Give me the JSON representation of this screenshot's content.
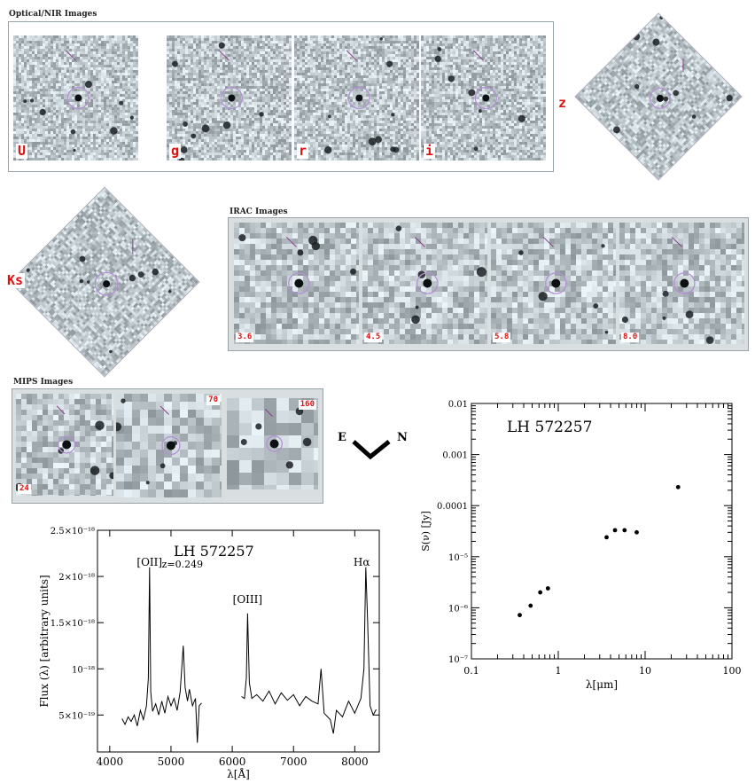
{
  "groups": {
    "optical": {
      "title": "Optical/NIR Images",
      "bands": [
        "U",
        "g",
        "r",
        "i",
        "z",
        "Ks"
      ]
    },
    "irac": {
      "title": "IRAC Images",
      "bands": [
        "3.6",
        "4.5",
        "5.8",
        "8.0"
      ]
    },
    "mips": {
      "title": "MIPS Images",
      "bands": [
        "24",
        "70",
        "160"
      ]
    }
  },
  "compass": {
    "east": "E",
    "north": "N"
  },
  "spectrum": {
    "object": "LH 572257",
    "redshift": "z=0.249",
    "lines": [
      "[OII]",
      "[OIII]",
      "Hα"
    ],
    "xlabel": "λ[Å]",
    "ylabel": "Flux (λ) [arbitrary units]"
  },
  "sed": {
    "object": "LH 572257",
    "xlabel": "λ[μm]",
    "ylabel": "S(ν) [Jy]"
  },
  "chart_data": [
    {
      "type": "line",
      "title": "LH 572257",
      "xlabel": "λ[Å]",
      "ylabel": "Flux (λ) [arbitrary units]",
      "xlim": [
        3800,
        8400
      ],
      "ylim": [
        1e-19,
        2.5e-18
      ],
      "xticks": [
        4000,
        5000,
        6000,
        7000,
        8000
      ],
      "yticks": [
        "5×10⁻¹⁹",
        "10⁻¹⁸",
        "1.5×10⁻¹⁸",
        "2×10⁻¹⁸",
        "2.5×10⁻¹⁸"
      ],
      "ytick_values": [
        5e-19,
        1e-18,
        1.5e-18,
        2e-18,
        2.5e-18
      ],
      "annotations": [
        {
          "text": "[OII]",
          "x": 4650
        },
        {
          "text": "[OIII]",
          "x": 6250
        },
        {
          "text": "Hα",
          "x": 8200
        }
      ],
      "series": [
        {
          "segments": [
            [
              [
                4200,
                4.6e-19
              ],
              [
                4250,
                4e-19
              ],
              [
                4300,
                4.8e-19
              ],
              [
                4350,
                4.3e-19
              ],
              [
                4400,
                5e-19
              ],
              [
                4450,
                3.8e-19
              ],
              [
                4500,
                5.5e-19
              ],
              [
                4550,
                4.5e-19
              ],
              [
                4600,
                6e-19
              ],
              [
                4630,
                9e-19
              ],
              [
                4650,
                2.1e-18
              ],
              [
                4670,
                7.5e-19
              ],
              [
                4700,
                5.4e-19
              ],
              [
                4750,
                6.2e-19
              ],
              [
                4800,
                5e-19
              ],
              [
                4850,
                6.5e-19
              ],
              [
                4900,
                5.2e-19
              ],
              [
                4950,
                7e-19
              ],
              [
                5000,
                6e-19
              ],
              [
                5050,
                6.8e-19
              ],
              [
                5100,
                5.5e-19
              ],
              [
                5150,
                7.5e-19
              ],
              [
                5200,
                1.25e-18
              ],
              [
                5230,
                8e-19
              ],
              [
                5270,
                6.5e-19
              ],
              [
                5300,
                7.8e-19
              ],
              [
                5350,
                6e-19
              ],
              [
                5400,
                6.8e-19
              ],
              [
                5430,
                2e-19
              ],
              [
                5460,
                6e-19
              ],
              [
                5500,
                6.3e-19
              ]
            ],
            [
              [
                6150,
                7e-19
              ],
              [
                6200,
                6.8e-19
              ],
              [
                6230,
                9e-19
              ],
              [
                6250,
                1.6e-18
              ],
              [
                6280,
                8.5e-19
              ],
              [
                6320,
                6.8e-19
              ],
              [
                6400,
                7.2e-19
              ],
              [
                6500,
                6.5e-19
              ],
              [
                6600,
                7.6e-19
              ],
              [
                6700,
                6.2e-19
              ],
              [
                6800,
                7.4e-19
              ],
              [
                6900,
                6.6e-19
              ],
              [
                7000,
                7.2e-19
              ],
              [
                7100,
                6e-19
              ],
              [
                7200,
                7e-19
              ],
              [
                7300,
                6.5e-19
              ],
              [
                7400,
                6.2e-19
              ],
              [
                7450,
                1e-18
              ],
              [
                7500,
                5.2e-19
              ],
              [
                7600,
                4.5e-19
              ],
              [
                7650,
                3e-19
              ],
              [
                7700,
                5.5e-19
              ],
              [
                7800,
                4.8e-19
              ],
              [
                7900,
                6.5e-19
              ],
              [
                8000,
                5.2e-19
              ],
              [
                8050,
                6e-19
              ],
              [
                8100,
                6.8e-19
              ],
              [
                8150,
                1e-18
              ],
              [
                8180,
                2.1e-18
              ],
              [
                8210,
                1.5e-18
              ],
              [
                8250,
                6e-19
              ],
              [
                8300,
                5e-19
              ],
              [
                8350,
                5.6e-19
              ]
            ]
          ]
        }
      ]
    },
    {
      "type": "scatter",
      "title": "LH 572257",
      "xlabel": "λ[μm]",
      "ylabel": "S(ν) [Jy]",
      "xscale": "log",
      "yscale": "log",
      "xlim": [
        0.1,
        100
      ],
      "ylim": [
        1e-07,
        0.01
      ],
      "xticks": [
        "0.1",
        "1",
        "10",
        "100"
      ],
      "yticks": [
        "10⁻⁷",
        "10⁻⁶",
        "10⁻⁵",
        "0.0001",
        "0.001",
        "0.01"
      ],
      "x": [
        0.36,
        0.48,
        0.62,
        0.76,
        3.6,
        4.5,
        5.8,
        8.0,
        24.0
      ],
      "y": [
        7.2e-07,
        1.1e-06,
        2e-06,
        2.4e-06,
        2.4e-05,
        3.3e-05,
        3.3e-05,
        3e-05,
        0.00023
      ]
    }
  ]
}
